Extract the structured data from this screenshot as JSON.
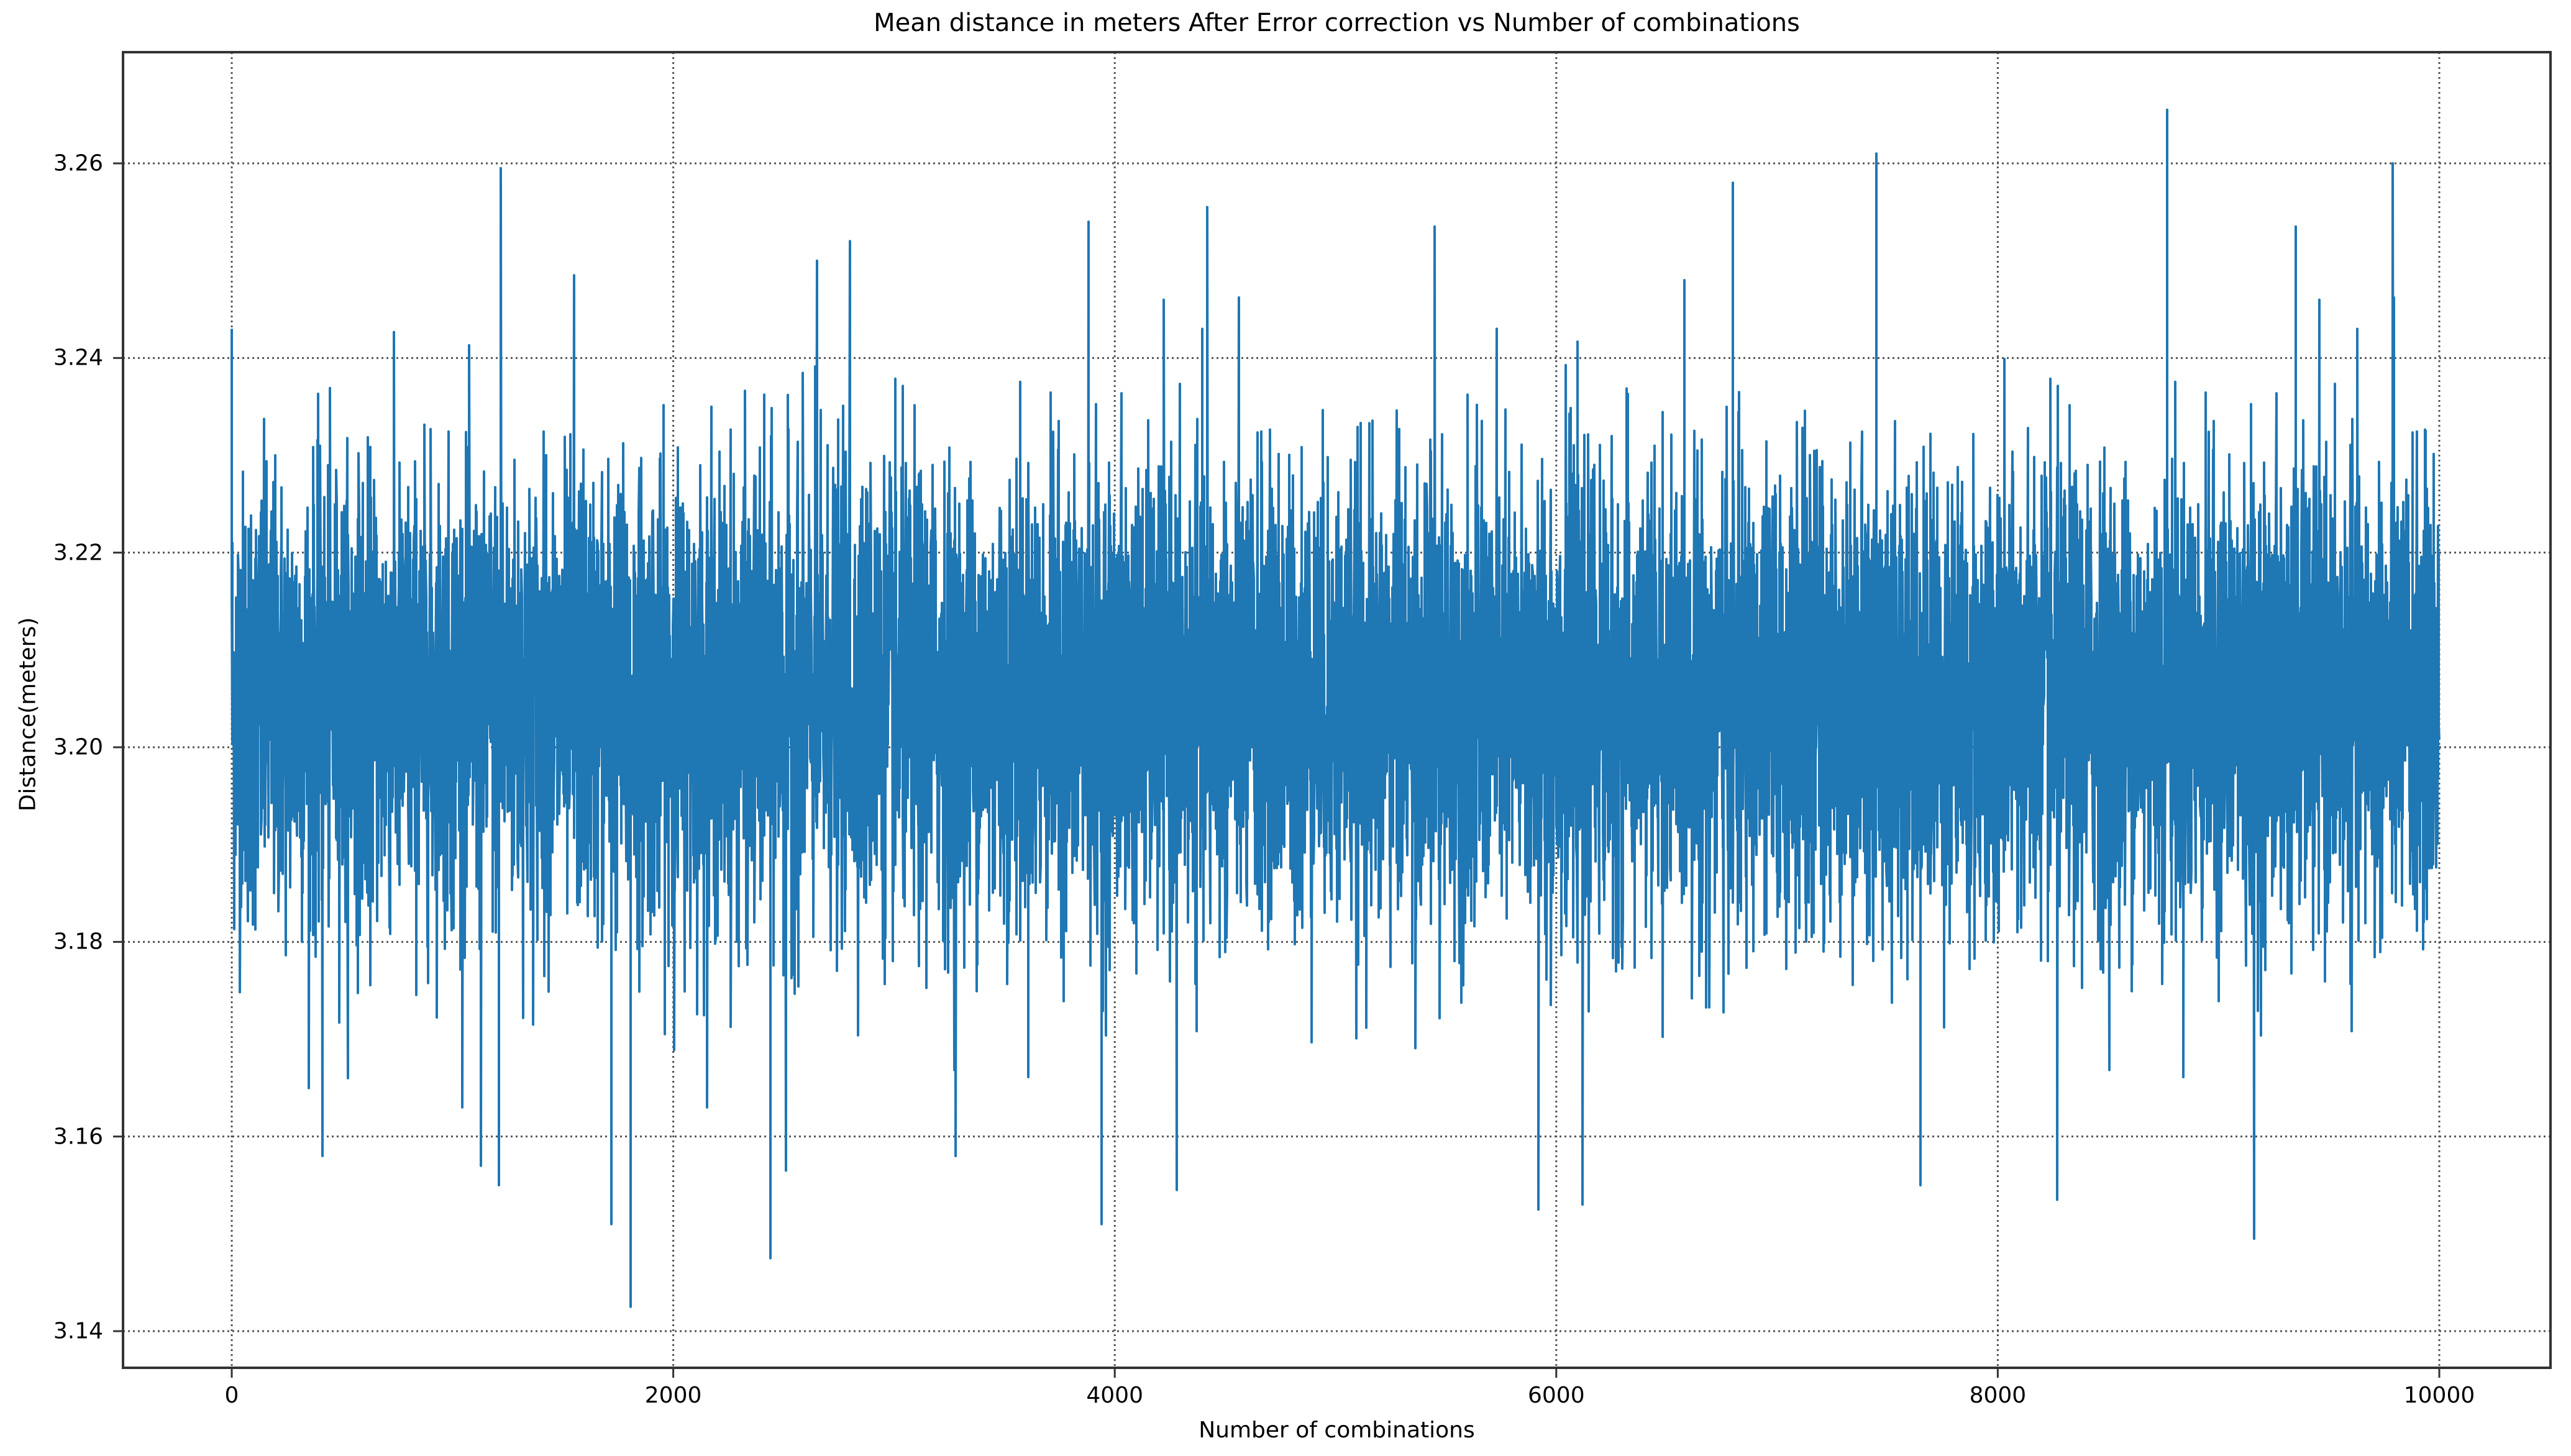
{
  "chart_data": {
    "type": "line",
    "title": "Mean distance in meters After Error correction vs Number of combinations",
    "xlabel": "Number of combinations",
    "ylabel": "Distance(meters)",
    "xlim": [
      -500,
      10500
    ],
    "ylim": [
      3.136,
      3.271
    ],
    "x_ticks": [
      0,
      2000,
      4000,
      6000,
      8000,
      10000
    ],
    "x_tick_labels": [
      "0",
      "2000",
      "4000",
      "6000",
      "8000",
      "10000"
    ],
    "y_ticks": [
      3.14,
      3.16,
      3.18,
      3.2,
      3.22,
      3.24,
      3.26
    ],
    "y_tick_labels": [
      "3.14",
      "3.16",
      "3.18",
      "3.20",
      "3.22",
      "3.24",
      "3.26"
    ],
    "grid": true,
    "grid_style": "dotted",
    "legend": null,
    "series": [
      {
        "name": "mean distance",
        "color": "#1f77b4",
        "n_points": 10000,
        "x_range": [
          0,
          10000
        ],
        "summary": {
          "approx_mean": 3.205,
          "dense_band": [
            3.18,
            3.235
          ],
          "global_max": {
            "x": 8767,
            "y": 3.2655
          },
          "global_min": {
            "x": 1807,
            "y": 3.1425
          }
        },
        "notable_peaks": [
          {
            "x": 0,
            "y": 3.243
          },
          {
            "x": 1220,
            "y": 3.2595
          },
          {
            "x": 1550,
            "y": 3.2485
          },
          {
            "x": 2650,
            "y": 3.25
          },
          {
            "x": 2800,
            "y": 3.252
          },
          {
            "x": 3880,
            "y": 3.254
          },
          {
            "x": 4420,
            "y": 3.2555
          },
          {
            "x": 5450,
            "y": 3.2535
          },
          {
            "x": 5920,
            "y": 3.2495
          },
          {
            "x": 6800,
            "y": 3.258
          },
          {
            "x": 7450,
            "y": 3.261
          },
          {
            "x": 8767,
            "y": 3.2655
          },
          {
            "x": 9350,
            "y": 3.2535
          },
          {
            "x": 9790,
            "y": 3.26
          }
        ],
        "notable_troughs": [
          {
            "x": 410,
            "y": 3.158
          },
          {
            "x": 1130,
            "y": 3.157
          },
          {
            "x": 1210,
            "y": 3.155
          },
          {
            "x": 1720,
            "y": 3.151
          },
          {
            "x": 1807,
            "y": 3.1425
          },
          {
            "x": 2440,
            "y": 3.1475
          },
          {
            "x": 2510,
            "y": 3.1565
          },
          {
            "x": 3280,
            "y": 3.158
          },
          {
            "x": 3940,
            "y": 3.151
          },
          {
            "x": 4280,
            "y": 3.1545
          },
          {
            "x": 5920,
            "y": 3.1525
          },
          {
            "x": 6120,
            "y": 3.153
          },
          {
            "x": 7650,
            "y": 3.155
          },
          {
            "x": 8270,
            "y": 3.1535
          },
          {
            "x": 9160,
            "y": 3.1495
          }
        ]
      }
    ]
  }
}
